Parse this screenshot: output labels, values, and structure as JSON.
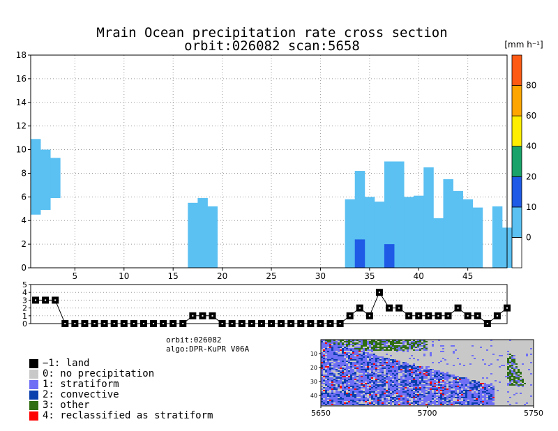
{
  "chart_data": [
    {
      "type": "heatmap",
      "title": "Mrain Ocean precipitation rate cross section",
      "subtitle": "orbit:026082    scan:5658",
      "units_label": "[mm h⁻¹]",
      "xlim": [
        0.5,
        49
      ],
      "ylim": [
        0,
        18
      ],
      "x_ticks": [
        5,
        10,
        15,
        20,
        25,
        30,
        35,
        40,
        45
      ],
      "y_ticks": [
        0,
        2,
        4,
        6,
        8,
        10,
        12,
        14,
        16,
        18
      ],
      "grid": true,
      "colorbar": {
        "ticks": [
          "0",
          "10",
          "20",
          "40",
          "60",
          "80"
        ],
        "colors": [
          "#ffffff",
          "#5bc0f2",
          "#1e5ae6",
          "#19a36a",
          "#ffee00",
          "#ffa500",
          "#ff5a14"
        ]
      },
      "columns": [
        {
          "x": 1,
          "bottom": 4.5,
          "top": 10.9,
          "level": 1
        },
        {
          "x": 2,
          "bottom": 4.9,
          "top": 10.0,
          "level": 1
        },
        {
          "x": 3,
          "bottom": 5.9,
          "top": 9.3,
          "level": 1
        },
        {
          "x": 17,
          "bottom": 0,
          "top": 5.5,
          "level": 1
        },
        {
          "x": 18,
          "bottom": 0,
          "top": 5.9,
          "level": 1
        },
        {
          "x": 19,
          "bottom": 0,
          "top": 5.2,
          "level": 1
        },
        {
          "x": 33,
          "bottom": 0,
          "top": 5.8,
          "level": 1
        },
        {
          "x": 34,
          "bottom": 0,
          "top": 8.2,
          "level": 1
        },
        {
          "x": 35,
          "bottom": 0,
          "top": 6.0,
          "level": 1
        },
        {
          "x": 36,
          "bottom": 0,
          "top": 5.6,
          "level": 1
        },
        {
          "x": 37,
          "bottom": 0,
          "top": 9.0,
          "level": 1
        },
        {
          "x": 38,
          "bottom": 0,
          "top": 9.0,
          "level": 1
        },
        {
          "x": 39,
          "bottom": 0,
          "top": 6.0,
          "level": 1
        },
        {
          "x": 40,
          "bottom": 0,
          "top": 6.1,
          "level": 1
        },
        {
          "x": 41,
          "bottom": 0,
          "top": 8.5,
          "level": 1
        },
        {
          "x": 42,
          "bottom": 0,
          "top": 4.2,
          "level": 1
        },
        {
          "x": 43,
          "bottom": 0,
          "top": 7.5,
          "level": 1
        },
        {
          "x": 44,
          "bottom": 0,
          "top": 6.5,
          "level": 1
        },
        {
          "x": 45,
          "bottom": 0,
          "top": 5.8,
          "level": 1
        },
        {
          "x": 46,
          "bottom": 0,
          "top": 5.1,
          "level": 1
        },
        {
          "x": 48,
          "bottom": 0,
          "top": 5.2,
          "level": 1
        },
        {
          "x": 49,
          "bottom": 0,
          "top": 3.4,
          "level": 1
        },
        {
          "x": 34,
          "bottom": 0,
          "top": 2.4,
          "level": 2
        },
        {
          "x": 37,
          "bottom": 0,
          "top": 2.0,
          "level": 2
        }
      ]
    },
    {
      "type": "line",
      "ylim": [
        0,
        5
      ],
      "y_ticks": [
        0,
        1,
        2,
        3,
        4,
        5
      ],
      "x": [
        1,
        2,
        3,
        4,
        5,
        6,
        7,
        8,
        9,
        10,
        11,
        12,
        13,
        14,
        15,
        16,
        17,
        18,
        19,
        20,
        21,
        22,
        23,
        24,
        25,
        26,
        27,
        28,
        29,
        30,
        31,
        32,
        33,
        34,
        35,
        36,
        37,
        38,
        39,
        40,
        41,
        42,
        43,
        44,
        45,
        46,
        47,
        48,
        49
      ],
      "values": [
        3,
        3,
        3,
        0,
        0,
        0,
        0,
        0,
        0,
        0,
        0,
        0,
        0,
        0,
        0,
        0,
        1,
        1,
        1,
        0,
        0,
        0,
        0,
        0,
        0,
        0,
        0,
        0,
        0,
        0,
        0,
        0,
        1,
        2,
        1,
        4,
        2,
        2,
        1,
        1,
        1,
        1,
        1,
        2,
        1,
        1,
        0,
        1,
        2
      ]
    },
    {
      "type": "heatmap",
      "x_ticks": [
        "5650",
        "5700",
        "5750"
      ],
      "y_ticks": [
        "10",
        "20",
        "30",
        "40"
      ]
    }
  ],
  "info": {
    "orbit": "orbit:026082",
    "algo": "algo:DPR-KuPR V06A"
  },
  "legend": [
    {
      "label": "−1: land",
      "color": "#000000"
    },
    {
      "label": "0: no precipitation",
      "color": "#c8c8c8"
    },
    {
      "label": "1: stratiform",
      "color": "#6f6ff5"
    },
    {
      "label": "2: convective",
      "color": "#0a3fae"
    },
    {
      "label": "3: other",
      "color": "#2f6e12"
    },
    {
      "label": "4: reclassified as stratiform",
      "color": "#ff0000"
    }
  ]
}
